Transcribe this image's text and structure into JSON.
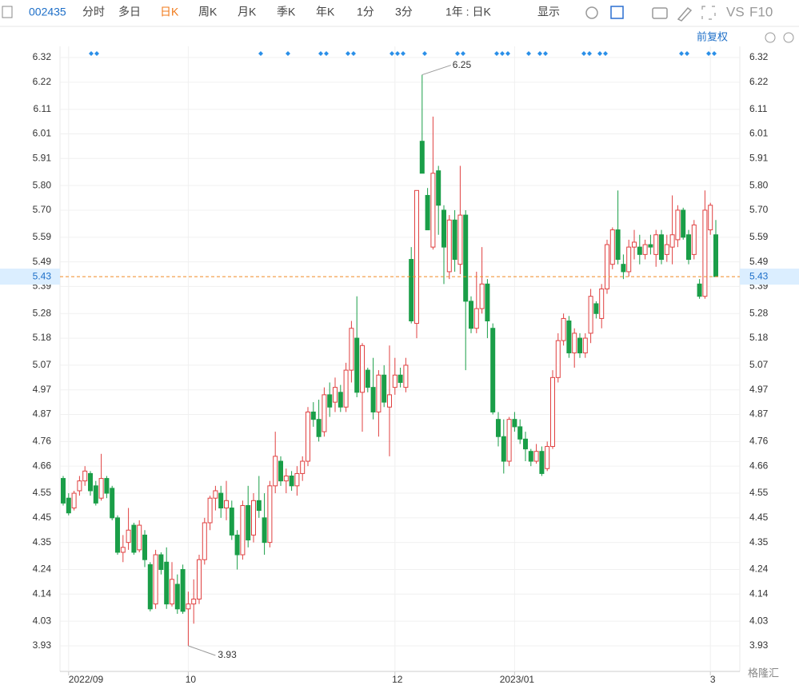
{
  "header": {
    "code": "002435",
    "tabs": [
      "分时",
      "多日",
      "日K",
      "周K",
      "月K",
      "季K",
      "年K",
      "1分",
      "3分"
    ],
    "period": "1年 : 日K",
    "display": "显示",
    "vs": "VS",
    "f10": "F10",
    "adjust": "前复权",
    "watermark": "格隆汇"
  },
  "chart_data": {
    "type": "candlestick",
    "ylim": [
      3.826,
      6.424
    ],
    "yticks": [
      6.32,
      6.22,
      6.11,
      6.01,
      5.91,
      {
        "value": 5.8,
        "label": "5.80"
      },
      {
        "value": 5.7,
        "label": "5.70"
      },
      5.59,
      5.49,
      5.39,
      5.28,
      5.18,
      5.07,
      4.97,
      4.87,
      4.76,
      4.66,
      4.55,
      4.45,
      4.35,
      4.24,
      4.14,
      4.03,
      3.93
    ],
    "x_labels": [
      {
        "index": 1,
        "label": "2022/09"
      },
      {
        "index": 23,
        "label": "10"
      },
      {
        "index": 61,
        "label": "12"
      },
      {
        "index": 83,
        "label": "2023/01"
      },
      {
        "index": 119,
        "label": "3"
      }
    ],
    "last": 5.43,
    "high_label": 6.25,
    "low_label": 3.93,
    "up_color": "#e04040",
    "down_color": "#1a9e48",
    "ohlc": [
      [
        4.61,
        4.62,
        4.5,
        4.51
      ],
      [
        4.53,
        4.55,
        4.46,
        4.47
      ],
      [
        4.49,
        4.56,
        4.48,
        4.55
      ],
      [
        4.56,
        4.62,
        4.54,
        4.6
      ],
      [
        4.6,
        4.66,
        4.58,
        4.64
      ],
      [
        4.63,
        4.64,
        4.54,
        4.56
      ],
      [
        4.58,
        4.6,
        4.5,
        4.51
      ],
      [
        4.53,
        4.71,
        4.52,
        4.61
      ],
      [
        4.61,
        4.62,
        4.53,
        4.55
      ],
      [
        4.57,
        4.58,
        4.44,
        4.45
      ],
      [
        4.45,
        4.46,
        4.3,
        4.31
      ],
      [
        4.31,
        4.38,
        4.27,
        4.33
      ],
      [
        4.35,
        4.49,
        4.32,
        4.4
      ],
      [
        4.42,
        4.43,
        4.3,
        4.31
      ],
      [
        4.32,
        4.44,
        4.31,
        4.42
      ],
      [
        4.38,
        4.4,
        4.25,
        4.28
      ],
      [
        4.26,
        4.27,
        4.07,
        4.08
      ],
      [
        4.1,
        4.32,
        4.08,
        4.3
      ],
      [
        4.3,
        4.31,
        4.22,
        4.24
      ],
      [
        4.27,
        4.33,
        4.08,
        4.1
      ],
      [
        4.1,
        4.27,
        4.09,
        4.2
      ],
      [
        4.18,
        4.22,
        4.06,
        4.08
      ],
      [
        4.24,
        4.26,
        4.06,
        4.07
      ],
      [
        4.08,
        4.15,
        3.93,
        4.1
      ],
      [
        4.1,
        4.2,
        4.02,
        4.12
      ],
      [
        4.12,
        4.3,
        4.1,
        4.28
      ],
      [
        4.28,
        4.45,
        4.26,
        4.43
      ],
      [
        4.43,
        4.54,
        4.4,
        4.53
      ],
      [
        4.53,
        4.58,
        4.48,
        4.56
      ],
      [
        4.55,
        4.58,
        4.45,
        4.49
      ],
      [
        4.49,
        4.6,
        4.44,
        4.52
      ],
      [
        4.49,
        4.52,
        4.36,
        4.38
      ],
      [
        4.38,
        4.4,
        4.24,
        4.3
      ],
      [
        4.3,
        4.52,
        4.28,
        4.5
      ],
      [
        4.5,
        4.58,
        4.33,
        4.36
      ],
      [
        4.38,
        4.55,
        4.35,
        4.52
      ],
      [
        4.52,
        4.62,
        4.45,
        4.48
      ],
      [
        4.45,
        4.55,
        4.3,
        4.35
      ],
      [
        4.35,
        4.6,
        4.33,
        4.58
      ],
      [
        4.58,
        4.8,
        4.55,
        4.7
      ],
      [
        4.68,
        4.7,
        4.58,
        4.6
      ],
      [
        4.6,
        4.65,
        4.55,
        4.62
      ],
      [
        4.62,
        4.64,
        4.56,
        4.58
      ],
      [
        4.58,
        4.66,
        4.54,
        4.63
      ],
      [
        4.63,
        4.7,
        4.6,
        4.68
      ],
      [
        4.68,
        4.9,
        4.66,
        4.88
      ],
      [
        4.88,
        4.92,
        4.82,
        4.85
      ],
      [
        4.85,
        4.93,
        4.76,
        4.78
      ],
      [
        4.8,
        4.98,
        4.78,
        4.95
      ],
      [
        4.95,
        5,
        4.86,
        4.9
      ],
      [
        4.92,
        5.02,
        4.88,
        4.98
      ],
      [
        4.96,
        4.99,
        4.88,
        4.9
      ],
      [
        4.9,
        5.08,
        4.88,
        5.05
      ],
      [
        5.05,
        5.25,
        5,
        5.22
      ],
      [
        5.18,
        5.35,
        4.94,
        4.96
      ],
      [
        4.96,
        5.16,
        4.8,
        5.15
      ],
      [
        5.05,
        5.06,
        4.96,
        4.98
      ],
      [
        4.98,
        5.1,
        4.85,
        4.88
      ],
      [
        4.88,
        5.05,
        4.78,
        5.03
      ],
      [
        5.03,
        5.07,
        4.9,
        4.92
      ],
      [
        4.9,
        5.15,
        4.7,
        4.95
      ],
      [
        4.98,
        5.1,
        4.95,
        5.03
      ],
      [
        5.03,
        5.06,
        4.98,
        5
      ],
      [
        4.98,
        5.1,
        4.96,
        5.07
      ],
      [
        5.5,
        5.55,
        5.24,
        5.25
      ],
      [
        5.24,
        5.78,
        5.18,
        5.78
      ],
      [
        5.98,
        6.25,
        5.85,
        5.85
      ],
      [
        5.76,
        5.79,
        5.62,
        5.62
      ],
      [
        5.55,
        6.08,
        5.54,
        5.85
      ],
      [
        5.86,
        5.88,
        5.6,
        5.72
      ],
      [
        5.7,
        5.72,
        5.4,
        5.55
      ],
      [
        5.45,
        5.68,
        5.42,
        5.66
      ],
      [
        5.66,
        5.7,
        5.45,
        5.5
      ],
      [
        5.48,
        5.88,
        5.44,
        5.68
      ],
      [
        5.68,
        5.7,
        5.05,
        5.33
      ],
      [
        5.33,
        5.35,
        5.2,
        5.22
      ],
      [
        5.22,
        5.45,
        5.2,
        5.3
      ],
      [
        5.3,
        5.55,
        5.28,
        5.4
      ],
      [
        5.4,
        5.42,
        5.18,
        5.25
      ],
      [
        5.22,
        5.24,
        4.87,
        4.88
      ],
      [
        4.85,
        4.88,
        4.74,
        4.78
      ],
      [
        4.78,
        4.85,
        4.63,
        4.68
      ],
      [
        4.68,
        4.86,
        4.66,
        4.85
      ],
      [
        4.85,
        4.88,
        4.8,
        4.82
      ],
      [
        4.82,
        4.85,
        4.75,
        4.77
      ],
      [
        4.77,
        4.8,
        4.68,
        4.73
      ],
      [
        4.72,
        4.73,
        4.66,
        4.68
      ],
      [
        4.68,
        4.75,
        4.67,
        4.72
      ],
      [
        4.72,
        4.74,
        4.62,
        4.63
      ],
      [
        4.65,
        4.76,
        4.64,
        4.74
      ],
      [
        4.74,
        5.05,
        4.73,
        5.02
      ],
      [
        5.02,
        5.2,
        5,
        5.17
      ],
      [
        5.17,
        5.28,
        5.15,
        5.26
      ],
      [
        5.25,
        5.27,
        5.1,
        5.12
      ],
      [
        5.12,
        5.22,
        5.06,
        5.2
      ],
      [
        5.18,
        5.2,
        5.1,
        5.12
      ],
      [
        5.12,
        5.2,
        5.1,
        5.18
      ],
      [
        5.2,
        5.38,
        5.16,
        5.35
      ],
      [
        5.32,
        5.33,
        5.26,
        5.28
      ],
      [
        5.26,
        5.4,
        5.22,
        5.38
      ],
      [
        5.38,
        5.58,
        5.36,
        5.56
      ],
      [
        5.48,
        5.63,
        5.46,
        5.62
      ],
      [
        5.62,
        5.78,
        5.48,
        5.5
      ],
      [
        5.48,
        5.52,
        5.42,
        5.45
      ],
      [
        5.45,
        5.58,
        5.43,
        5.55
      ],
      [
        5.55,
        5.62,
        5.5,
        5.57
      ],
      [
        5.55,
        5.6,
        5.48,
        5.52
      ],
      [
        5.52,
        5.58,
        5.5,
        5.56
      ],
      [
        5.56,
        5.6,
        5.52,
        5.55
      ],
      [
        5.52,
        5.62,
        5.47,
        5.6
      ],
      [
        5.6,
        5.62,
        5.48,
        5.5
      ],
      [
        5.52,
        5.6,
        5.49,
        5.56
      ],
      [
        5.55,
        5.76,
        5.48,
        5.6
      ],
      [
        5.58,
        5.72,
        5.55,
        5.7
      ],
      [
        5.7,
        5.71,
        5.58,
        5.59
      ],
      [
        5.6,
        5.62,
        5.48,
        5.5
      ],
      [
        5.52,
        5.66,
        5.5,
        5.64
      ],
      [
        5.4,
        5.42,
        5.34,
        5.35
      ],
      [
        5.35,
        5.78,
        5.34,
        5.7
      ],
      [
        5.62,
        5.73,
        5.6,
        5.72
      ],
      [
        5.6,
        5.66,
        5.43,
        5.43
      ]
    ]
  }
}
